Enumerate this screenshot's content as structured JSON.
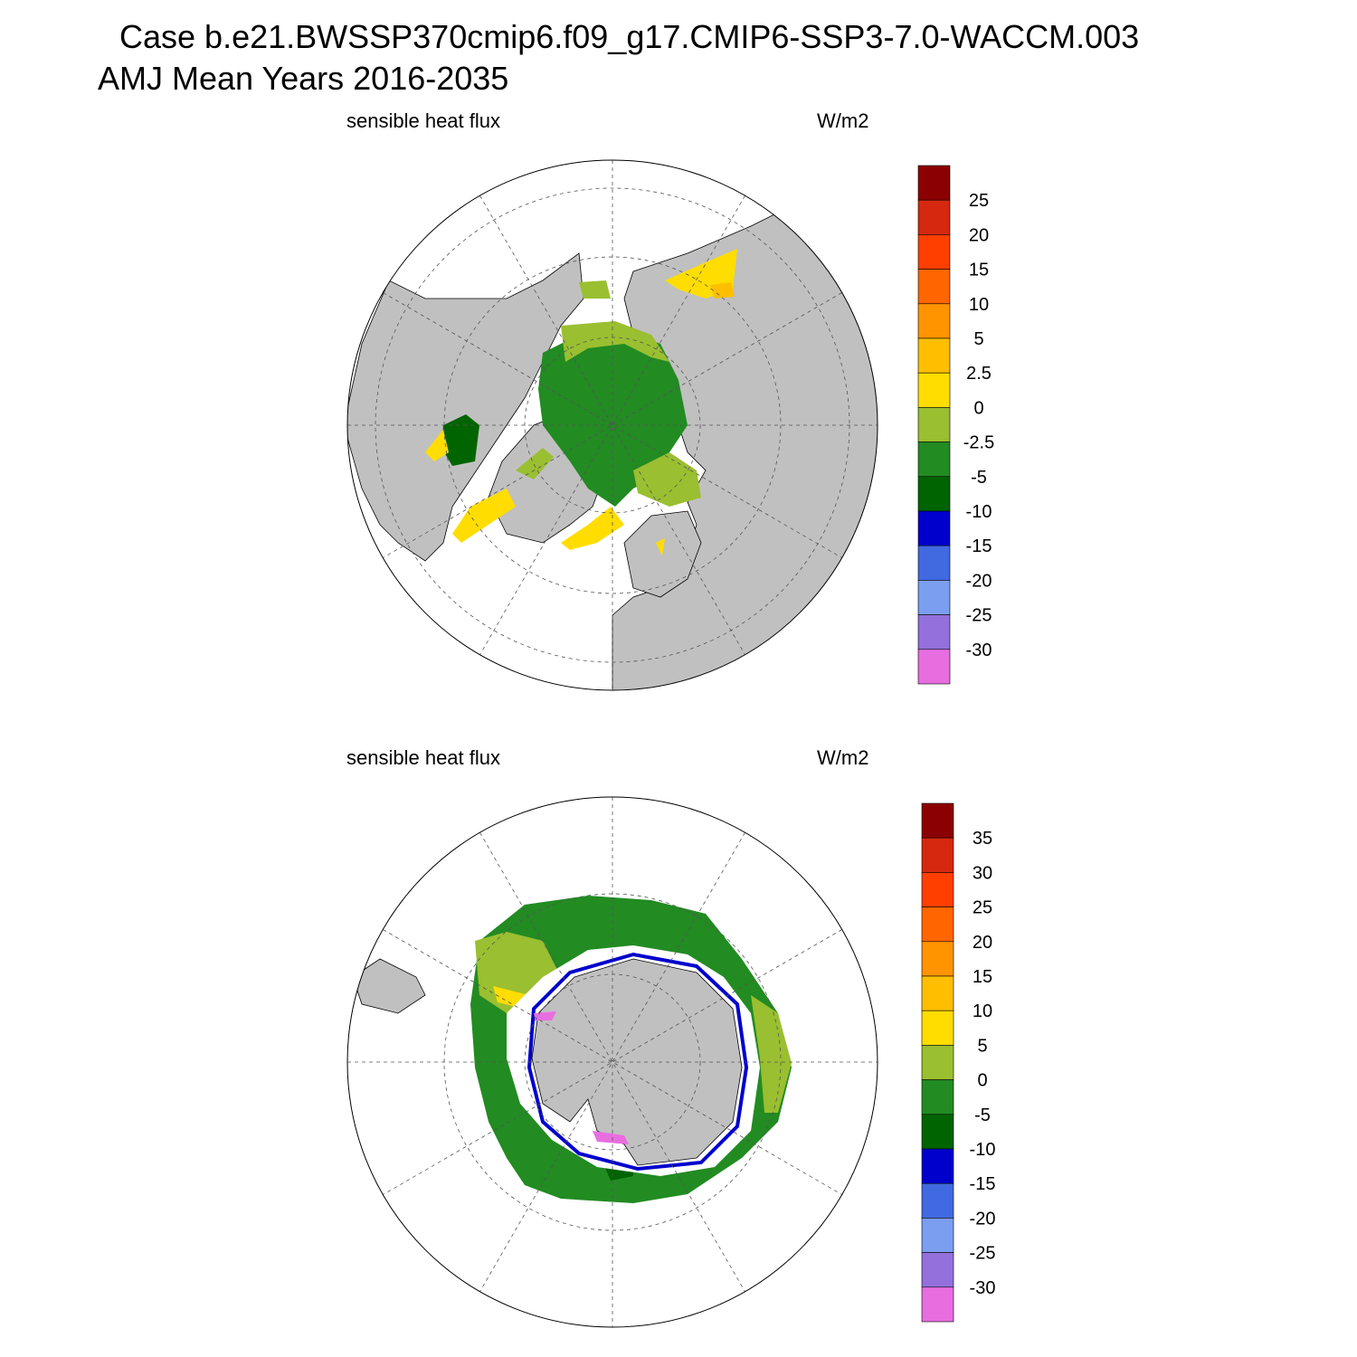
{
  "header": {
    "case_line": "Case b.e21.BWSSP370cmip6.f09_g17.CMIP6-SSP3-7.0-WACCM.003",
    "period_line": "AMJ Mean   Years 2016-2035"
  },
  "colors": {
    "land": "#c0c0c0",
    "ice": "#ffffff",
    "light_green": "#9abf30",
    "green": "#228b22",
    "dark_green": "#006400",
    "yellow": "#ffdd00",
    "amber": "#ffbf00",
    "blue": "#0000cd",
    "violet": "#e86ee0",
    "grid": "#555555"
  },
  "panels": [
    {
      "id": "north",
      "hemisphere": "Northern Hemisphere polar stereographic",
      "left_label": "sensible heat flux",
      "units": "W/m2",
      "colorbar": {
        "colors": [
          "#8b0000",
          "#d6280f",
          "#ff3f00",
          "#ff6600",
          "#ff9400",
          "#ffbf00",
          "#ffdd00",
          "#9abf30",
          "#228b22",
          "#006400",
          "#0000cd",
          "#4169e1",
          "#7b9ef0",
          "#9370db",
          "#e86ee0"
        ],
        "labels": [
          "25",
          "20",
          "15",
          "10",
          "5",
          "2.5",
          "0",
          "-2.5",
          "-5",
          "-10",
          "-15",
          "-20",
          "-25",
          "-30"
        ]
      }
    },
    {
      "id": "south",
      "hemisphere": "Southern Hemisphere polar stereographic",
      "left_label": "sensible heat flux",
      "units": "W/m2",
      "colorbar": {
        "colors": [
          "#8b0000",
          "#d6280f",
          "#ff3f00",
          "#ff6600",
          "#ff9400",
          "#ffbf00",
          "#ffdd00",
          "#9abf30",
          "#228b22",
          "#006400",
          "#0000cd",
          "#4169e1",
          "#7b9ef0",
          "#9370db",
          "#e86ee0"
        ],
        "labels": [
          "35",
          "30",
          "25",
          "20",
          "15",
          "10",
          "5",
          "0",
          "-5",
          "-10",
          "-15",
          "-20",
          "-25",
          "-30"
        ]
      }
    }
  ]
}
